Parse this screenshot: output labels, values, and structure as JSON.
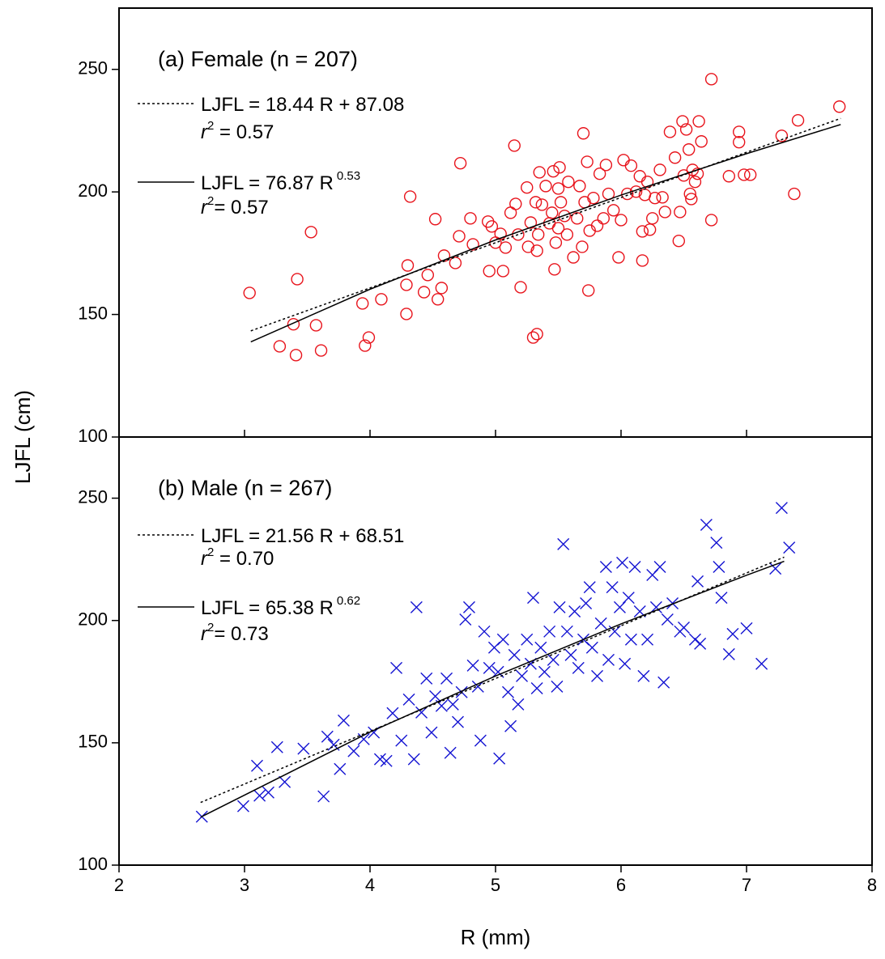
{
  "chart_data": [
    {
      "type": "scatter",
      "title": "(a) Female (n = 207)",
      "marker": "circle",
      "color": "#e8141c",
      "xlim": [
        2,
        8
      ],
      "ylim": [
        100,
        275
      ],
      "xticks": [
        2,
        3,
        4,
        5,
        6,
        7,
        8
      ],
      "yticks": [
        100,
        150,
        200,
        250
      ],
      "x": [
        3.04,
        3.28,
        3.41,
        3.42,
        3.39,
        3.53,
        3.57,
        3.61,
        3.94,
        3.96,
        3.99,
        4.09,
        4.29,
        4.3,
        4.32,
        4.29,
        4.43,
        4.46,
        4.52,
        4.54,
        4.57,
        4.59,
        4.68,
        4.72,
        4.71,
        4.8,
        4.82,
        4.94,
        4.95,
        4.97,
        5.0,
        5.04,
        5.06,
        5.08,
        5.12,
        5.15,
        5.16,
        5.18,
        5.2,
        5.25,
        5.26,
        5.28,
        5.3,
        5.33,
        5.32,
        5.34,
        5.33,
        5.35,
        5.37,
        5.4,
        5.43,
        5.45,
        5.46,
        5.48,
        5.47,
        5.5,
        5.51,
        5.52,
        5.55,
        5.58,
        5.62,
        5.65,
        5.67,
        5.69,
        5.7,
        5.71,
        5.73,
        5.74,
        5.75,
        5.78,
        5.81,
        5.83,
        5.86,
        5.88,
        5.9,
        5.94,
        5.98,
        6.0,
        6.02,
        6.05,
        6.08,
        6.12,
        6.15,
        6.17,
        6.17,
        6.19,
        6.21,
        6.23,
        6.25,
        6.27,
        6.31,
        6.33,
        6.35,
        6.39,
        6.43,
        6.46,
        6.47,
        6.49,
        6.5,
        6.52,
        6.54,
        6.55,
        6.56,
        6.57,
        6.59,
        6.61,
        6.62,
        6.64,
        6.72,
        6.72,
        6.86,
        6.94,
        6.94,
        6.98,
        7.03,
        7.28,
        7.38,
        7.41,
        7.74,
        5.5,
        5.57
      ],
      "values": [
        158.8,
        137,
        133.4,
        164.4,
        146,
        183.6,
        145.6,
        135.3,
        154.5,
        137.3,
        140.6,
        156.2,
        150.2,
        170,
        198.1,
        162.1,
        159.1,
        166.1,
        188.9,
        156.2,
        160.8,
        174,
        171,
        211.7,
        181.9,
        189.2,
        178.6,
        187.9,
        167.7,
        185.9,
        179.3,
        182.9,
        167.7,
        177.3,
        191.5,
        218.9,
        195.1,
        182.6,
        161.1,
        201.8,
        177.6,
        187.5,
        140.6,
        142,
        195.8,
        182.6,
        176,
        208,
        194.8,
        202.4,
        187.2,
        191.5,
        208.4,
        179.3,
        168.4,
        185.2,
        210,
        195.8,
        190.2,
        204.1,
        173.3,
        189.2,
        202.4,
        177.6,
        223.9,
        195.8,
        212.3,
        159.8,
        184.2,
        197.5,
        186.2,
        207.4,
        189.2,
        211,
        199.2,
        192.5,
        173.3,
        188.5,
        213,
        199.2,
        210.7,
        200.1,
        206.4,
        172,
        183.9,
        198.8,
        204.1,
        184.6,
        189.2,
        197.5,
        209,
        197.8,
        191.8,
        224.5,
        214,
        180,
        191.8,
        228.8,
        206.7,
        225.5,
        217.3,
        199.2,
        197.1,
        209,
        204.1,
        207.4,
        228.8,
        220.6,
        188.5,
        246,
        206.4,
        224.5,
        220.3,
        207,
        207,
        222.9,
        199.2,
        229.2,
        234.8,
        201.4,
        182.6
      ],
      "fits": [
        {
          "style": "dotted",
          "equation": "LJFL = 18.44 R + 87.08",
          "r2": {
            "symbol": "r",
            "sup": "2",
            "text": " = 0.57"
          },
          "x": [
            3.05,
            7.75
          ],
          "values": [
            143.3,
            230.0
          ]
        },
        {
          "style": "solid",
          "equation": "LJFL = 76.87 R",
          "exponent": "0.53",
          "r2": {
            "symbol": "r",
            "sup": "2",
            "text": "= 0.57"
          },
          "x": [
            3.05,
            4,
            5,
            6,
            7,
            7.75
          ],
          "values": [
            138.8,
            160.3,
            180.4,
            198.7,
            215.6,
            227.5
          ]
        }
      ]
    },
    {
      "type": "scatter",
      "title": "(b) Male (n = 267)",
      "marker": "cross",
      "color": "#1414d2",
      "xlim": [
        2,
        8
      ],
      "ylim": [
        100,
        275
      ],
      "xticks": [
        2,
        3,
        4,
        5,
        6,
        7,
        8
      ],
      "yticks": [
        100,
        150,
        200,
        250
      ],
      "xlabel": "R (mm)",
      "ylabel": "LJFL (cm)",
      "x": [
        2.66,
        2.99,
        3.1,
        3.12,
        3.19,
        3.26,
        3.32,
        3.47,
        3.63,
        3.66,
        3.71,
        3.76,
        3.79,
        3.87,
        3.95,
        4.03,
        4.08,
        4.13,
        4.18,
        4.21,
        4.25,
        4.31,
        4.35,
        4.37,
        4.41,
        4.45,
        4.49,
        4.52,
        4.57,
        4.61,
        4.64,
        4.66,
        4.7,
        4.73,
        4.76,
        4.79,
        4.82,
        4.86,
        4.88,
        4.91,
        4.95,
        4.99,
        5.02,
        5.03,
        5.06,
        5.1,
        5.12,
        5.15,
        5.18,
        5.21,
        5.25,
        5.28,
        5.3,
        5.33,
        5.36,
        5.39,
        5.43,
        5.46,
        5.49,
        5.51,
        5.54,
        5.57,
        5.6,
        5.63,
        5.66,
        5.7,
        5.72,
        5.75,
        5.77,
        5.81,
        5.84,
        5.88,
        5.9,
        5.93,
        5.95,
        5.99,
        6.01,
        6.03,
        6.06,
        6.08,
        6.11,
        6.15,
        6.18,
        6.21,
        6.25,
        6.28,
        6.31,
        6.34,
        6.37,
        6.41,
        6.47,
        6.5,
        6.59,
        6.61,
        6.63,
        6.68,
        6.76,
        6.78,
        6.8,
        6.86,
        6.89,
        7.0,
        7.12,
        7.23,
        7.28,
        7.34
      ],
      "values": [
        119.8,
        124.1,
        140.6,
        128.4,
        129.7,
        148.2,
        134,
        147.6,
        128.1,
        152.5,
        149.2,
        139.3,
        159.1,
        146.6,
        151.5,
        154.2,
        143.3,
        142.6,
        162.1,
        180.6,
        150.9,
        167.7,
        143.3,
        205.4,
        162.4,
        176.3,
        154.2,
        169,
        165.1,
        176.3,
        145.9,
        165.7,
        158.5,
        170.7,
        200.4,
        205.4,
        181.6,
        173,
        150.9,
        195.5,
        180.6,
        188.9,
        179,
        143.6,
        192.2,
        170.7,
        156.8,
        185.9,
        165.7,
        177.3,
        192.2,
        182.3,
        209.3,
        172.3,
        188.9,
        179,
        195.5,
        183.9,
        173,
        205.4,
        231.2,
        195.5,
        185.9,
        203.7,
        180.6,
        192.2,
        207,
        213.6,
        188.9,
        177.3,
        198.8,
        221.9,
        183.9,
        213.6,
        195.5,
        205.4,
        223.6,
        182.3,
        209.3,
        192.2,
        221.9,
        203.7,
        177.3,
        192.2,
        218.6,
        205.4,
        221.9,
        174.7,
        200.4,
        207,
        195.5,
        197.1,
        192.2,
        216,
        190.5,
        239.1,
        231.8,
        221.9,
        209.3,
        186.2,
        194.5,
        196.8,
        182.3,
        221.2,
        246,
        229.8
      ],
      "fits": [
        {
          "style": "dotted",
          "equation": "LJFL = 21.56 R + 68.51",
          "r2": {
            "symbol": "r",
            "sup": "2",
            "text": " = 0.70"
          },
          "x": [
            2.65,
            7.3
          ],
          "values": [
            125.6,
            225.9
          ]
        },
        {
          "style": "solid",
          "equation": "LJFL = 65.38 R",
          "exponent": "0.62",
          "r2": {
            "symbol": "r",
            "sup": "2",
            "text": "= 0.73"
          },
          "x": [
            2.65,
            4,
            5,
            6,
            7,
            7.3
          ],
          "values": [
            119.6,
            154.4,
            177.3,
            198.6,
            218.5,
            224.2
          ]
        }
      ]
    }
  ]
}
